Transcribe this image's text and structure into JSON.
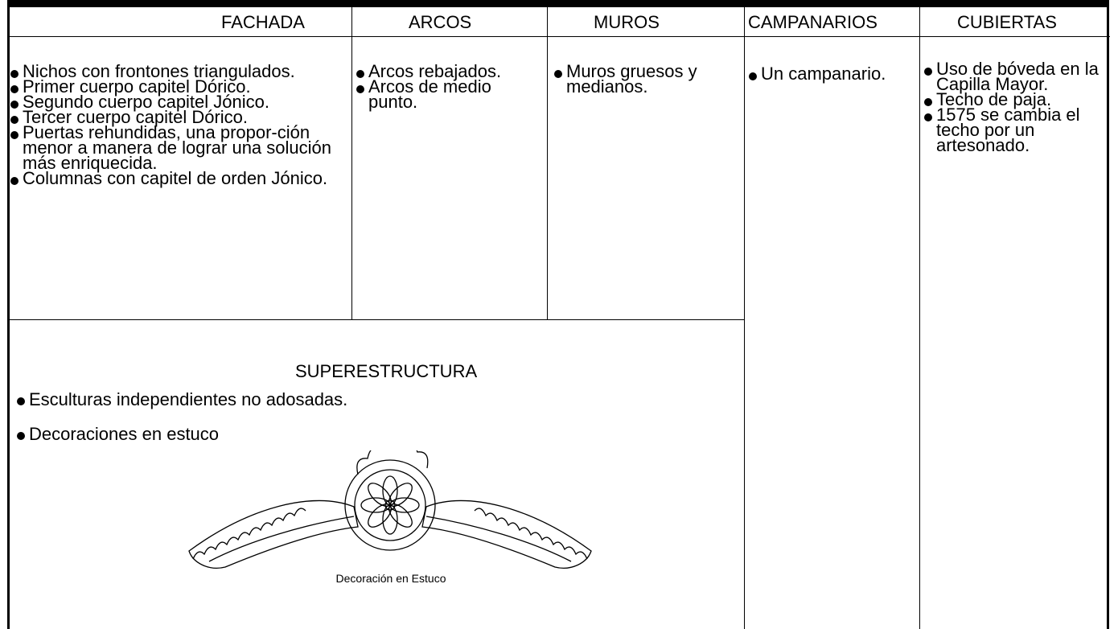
{
  "table": {
    "columns": [
      {
        "title": "FACHADA",
        "items": [
          "Nichos con frontones triangulados.",
          "Primer cuerpo capitel Dórico.",
          "Segundo cuerpo capitel Jónico.",
          "Tercer cuerpo capitel Dórico.",
          "Puertas rehundidas, una propor-ción menor a manera de lograr una solución más enriquecida.",
          "Columnas con capitel de orden Jónico."
        ]
      },
      {
        "title": "ARCOS",
        "items": [
          "Arcos rebajados.",
          "Arcos de medio punto."
        ]
      },
      {
        "title": "MUROS",
        "items": [
          "Muros gruesos y medianos."
        ]
      },
      {
        "title": "CAMPANARIOS",
        "items": [
          "Un campanario."
        ]
      },
      {
        "title": "CUBIERTAS",
        "items": [
          "Uso de bóveda en la Capilla Mayor.",
          "Techo de paja.",
          "1575 se cambia el techo por un artesonado."
        ]
      }
    ],
    "superestructura": {
      "title": "SUPERESTRUCTURA",
      "items": [
        "Esculturas independientes no adosadas.",
        "Decoraciones en estuco"
      ],
      "caption": "Decoración en Estuco"
    }
  }
}
